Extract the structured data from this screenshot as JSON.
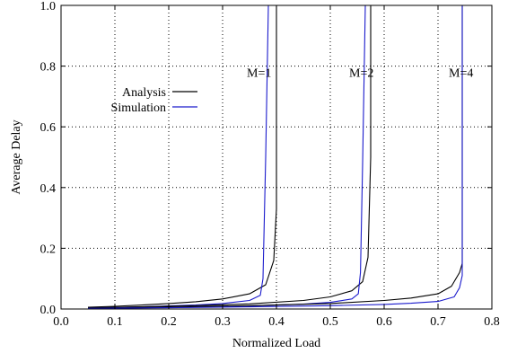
{
  "chart_data": {
    "type": "line",
    "title": "",
    "xlabel": "Normalized Load",
    "ylabel": "Average Delay",
    "xlim": [
      0.0,
      0.8
    ],
    "ylim": [
      0.0,
      1.0
    ],
    "xticks": [
      0.0,
      0.1,
      0.2,
      0.3,
      0.4,
      0.5,
      0.6,
      0.7,
      0.8
    ],
    "yticks": [
      0.0,
      0.2,
      0.4,
      0.6,
      0.8,
      1.0
    ],
    "xtick_labels": [
      "0.0",
      "0.1",
      "0.2",
      "0.3",
      "0.4",
      "0.5",
      "0.6",
      "0.7",
      "0.8"
    ],
    "ytick_labels": [
      "0.0",
      "0.2",
      "0.4",
      "0.6",
      "0.8",
      "1.0"
    ],
    "grid": true,
    "grid_style": "dotted",
    "legend_position": "upper-left",
    "legend": [
      {
        "label": "Analysis",
        "color": "#000000"
      },
      {
        "label": "Simulation",
        "color": "#1a1acc"
      }
    ],
    "annotations": [
      {
        "text": "M=1",
        "x": 0.345,
        "y": 0.78
      },
      {
        "text": "M=2",
        "x": 0.535,
        "y": 0.78
      },
      {
        "text": "M=4",
        "x": 0.72,
        "y": 0.78
      }
    ],
    "series": [
      {
        "name": "Analysis",
        "group": "M=1",
        "color": "#000000",
        "x": [
          0.05,
          0.1,
          0.15,
          0.2,
          0.25,
          0.3,
          0.35,
          0.38,
          0.395,
          0.4,
          0.4
        ],
        "y": [
          0.006,
          0.009,
          0.013,
          0.018,
          0.024,
          0.033,
          0.05,
          0.08,
          0.16,
          0.33,
          1.0
        ]
      },
      {
        "name": "Simulation",
        "group": "M=1",
        "color": "#1a1acc",
        "x": [
          0.05,
          0.1,
          0.15,
          0.2,
          0.25,
          0.3,
          0.35,
          0.37,
          0.375,
          0.38,
          0.385
        ],
        "y": [
          0.003,
          0.005,
          0.007,
          0.01,
          0.013,
          0.018,
          0.028,
          0.045,
          0.1,
          0.5,
          1.0
        ]
      },
      {
        "name": "Analysis",
        "group": "M=2",
        "color": "#000000",
        "x": [
          0.05,
          0.15,
          0.25,
          0.35,
          0.45,
          0.5,
          0.54,
          0.56,
          0.57,
          0.575,
          0.575
        ],
        "y": [
          0.004,
          0.007,
          0.011,
          0.017,
          0.028,
          0.04,
          0.06,
          0.09,
          0.17,
          0.5,
          1.0
        ]
      },
      {
        "name": "Simulation",
        "group": "M=2",
        "color": "#1a1acc",
        "x": [
          0.05,
          0.15,
          0.25,
          0.35,
          0.45,
          0.5,
          0.54,
          0.552,
          0.556,
          0.56,
          0.565
        ],
        "y": [
          0.002,
          0.004,
          0.006,
          0.01,
          0.016,
          0.022,
          0.033,
          0.05,
          0.12,
          0.48,
          1.0
        ]
      },
      {
        "name": "Analysis",
        "group": "M=4",
        "color": "#000000",
        "x": [
          0.05,
          0.2,
          0.35,
          0.5,
          0.6,
          0.65,
          0.7,
          0.725,
          0.74,
          0.745,
          0.745
        ],
        "y": [
          0.003,
          0.006,
          0.011,
          0.018,
          0.028,
          0.036,
          0.05,
          0.075,
          0.12,
          0.15,
          1.0
        ]
      },
      {
        "name": "Simulation",
        "group": "M=4",
        "color": "#1a1acc",
        "x": [
          0.05,
          0.2,
          0.35,
          0.5,
          0.6,
          0.65,
          0.7,
          0.73,
          0.74,
          0.745,
          0.745
        ],
        "y": [
          0.002,
          0.004,
          0.007,
          0.011,
          0.015,
          0.019,
          0.025,
          0.04,
          0.07,
          0.11,
          1.0
        ]
      }
    ]
  }
}
